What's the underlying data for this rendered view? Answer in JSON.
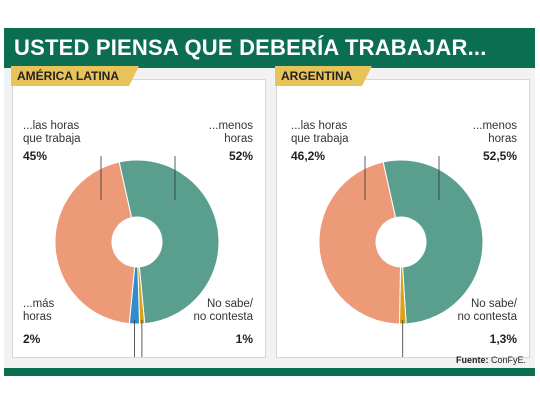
{
  "header": {
    "title": "USTED PIENSA QUE DEBERÍA TRABAJAR..."
  },
  "colors": {
    "header": "#0b6e50",
    "tab": "#e8c35a",
    "las_horas": "#ec9a78",
    "menos_horas": "#5a9e8e",
    "mas_horas": "#2f8ec9",
    "no_sabe": "#d9a21b"
  },
  "panels": [
    {
      "title": "AMÉRICA LATINA",
      "labels": {
        "las_horas": [
          "...las horas",
          "que trabaja"
        ],
        "menos": [
          "...menos",
          "horas"
        ],
        "mas": [
          "...más",
          "horas"
        ],
        "nosabe": [
          "No sabe/",
          "no contesta"
        ]
      },
      "pcts": {
        "las_horas": "45%",
        "menos": "52%",
        "mas": "2%",
        "nosabe": "1%"
      }
    },
    {
      "title": "ARGENTINA",
      "labels": {
        "las_horas": [
          "...las horas",
          "que trabaja"
        ],
        "menos": [
          "...menos",
          "horas"
        ],
        "nosabe": [
          "No sabe/",
          "no contesta"
        ]
      },
      "pcts": {
        "las_horas": "46,2%",
        "menos": "52,5%",
        "nosabe": "1,3%"
      }
    }
  ],
  "chart_data": [
    {
      "type": "pie",
      "title": "AMÉRICA LATINA",
      "categories": [
        "...las horas que trabaja",
        "...menos horas",
        "...más horas",
        "No sabe/ no contesta"
      ],
      "values": [
        45,
        52,
        2,
        1
      ],
      "colors": [
        "#ec9a78",
        "#5a9e8e",
        "#2f8ec9",
        "#d9a21b"
      ]
    },
    {
      "type": "pie",
      "title": "ARGENTINA",
      "categories": [
        "...las horas que trabaja",
        "...menos horas",
        "No sabe/ no contesta"
      ],
      "values": [
        46.2,
        52.5,
        1.3
      ],
      "colors": [
        "#ec9a78",
        "#5a9e8e",
        "#d9a21b"
      ]
    }
  ],
  "source": {
    "label": "Fuente:",
    "value": "ConFyE."
  }
}
